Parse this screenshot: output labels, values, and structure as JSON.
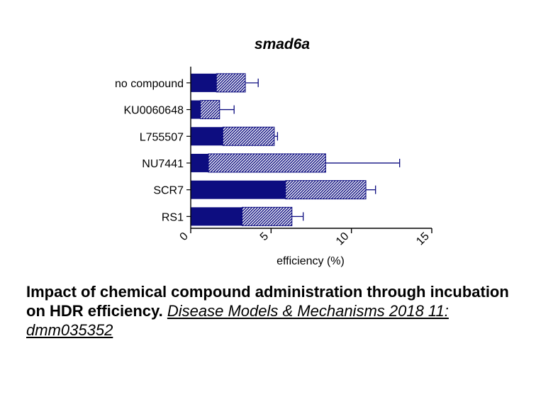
{
  "chart_data": {
    "type": "bar",
    "orientation": "horizontal",
    "stacked": true,
    "title": "smad6a",
    "xlabel": "efficiency (%)",
    "ylabel": "",
    "xlim": [
      0,
      15
    ],
    "xticks": [
      "0",
      "5",
      "10",
      "15"
    ],
    "grid": false,
    "categories": [
      "no compound",
      "KU0060648",
      "L755507",
      "NU7441",
      "SCR7",
      "RS1"
    ],
    "series": [
      {
        "fill": "solid",
        "color": "#0d0d80",
        "values": [
          1.6,
          0.6,
          2.0,
          1.1,
          5.9,
          3.2
        ]
      },
      {
        "fill": "hatched",
        "color": "#0d0d80",
        "values": [
          1.8,
          1.2,
          3.2,
          7.3,
          5.0,
          3.1
        ]
      }
    ],
    "totals": [
      3.4,
      1.8,
      5.2,
      8.4,
      10.9,
      6.3
    ],
    "error_upper": [
      4.2,
      2.7,
      5.4,
      13.0,
      11.5,
      7.0
    ],
    "colors": {
      "bar": "#0d0d80",
      "error_bar": "#0d0d80",
      "axis": "#000000"
    }
  },
  "caption": {
    "bold_text": "Impact of chemical compound administration through incubation on HDR efficiency.",
    "link_text": "Disease Models & Mechanisms 2018 11: dmm035352"
  }
}
